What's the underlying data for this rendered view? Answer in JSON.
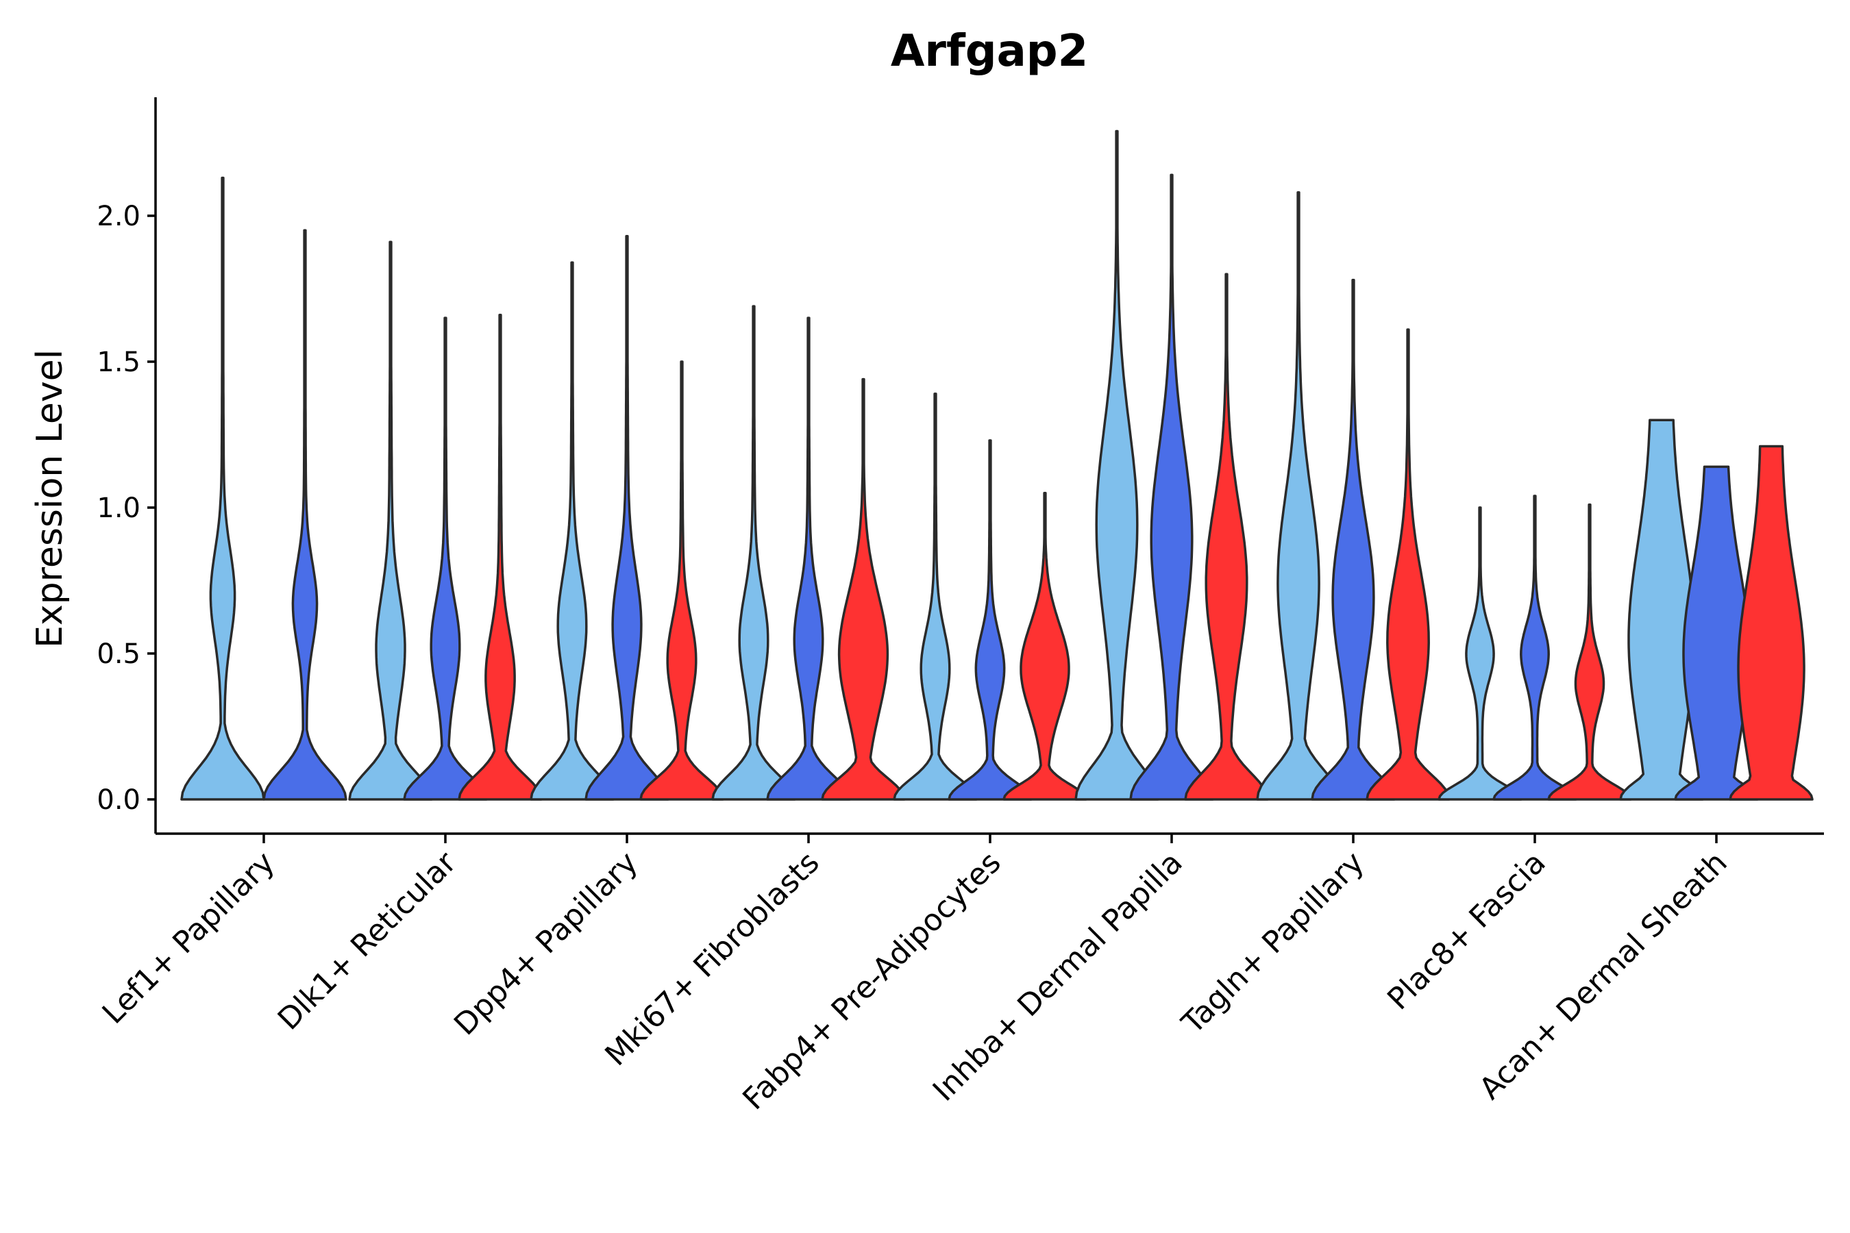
{
  "chart_data": {
    "type": "violin",
    "title": "Arfgap2",
    "xlabel": "",
    "ylabel": "Expression Level",
    "ylim": [
      -0.11,
      2.42
    ],
    "yticks": [
      0.0,
      0.5,
      1.0,
      1.5,
      2.0
    ],
    "ytick_labels": [
      "0.0",
      "0.5",
      "1.0",
      "1.5",
      "2.0"
    ],
    "series_colors": {
      "a": "#7fbfec",
      "b": "#4a6ee8",
      "c": "#fe3232"
    },
    "categories": [
      {
        "name": "Lef1+ Papillary",
        "violins": [
          {
            "series": "a",
            "max": 2.13,
            "peak": 0.7,
            "shape": "mid"
          },
          {
            "series": "b",
            "max": 1.95,
            "peak": 0.67,
            "shape": "mid"
          }
        ]
      },
      {
        "name": "Dlk1+ Reticular",
        "violins": [
          {
            "series": "a",
            "max": 1.91,
            "peak": 0.52,
            "shape": "lowmid"
          },
          {
            "series": "b",
            "max": 1.65,
            "peak": 0.53,
            "shape": "lowmid"
          },
          {
            "series": "c",
            "max": 1.66,
            "peak": 0.42,
            "shape": "lowmid"
          }
        ]
      },
      {
        "name": "Dpp4+ Papillary",
        "violins": [
          {
            "series": "a",
            "max": 1.84,
            "peak": 0.6,
            "shape": "lowmid"
          },
          {
            "series": "b",
            "max": 1.93,
            "peak": 0.6,
            "shape": "lowmid"
          },
          {
            "series": "c",
            "max": 1.5,
            "peak": 0.48,
            "shape": "lowmid"
          }
        ]
      },
      {
        "name": "Mki67+ Fibroblasts",
        "violins": [
          {
            "series": "a",
            "max": 1.69,
            "peak": 0.55,
            "shape": "lowmid"
          },
          {
            "series": "b",
            "max": 1.65,
            "peak": 0.55,
            "shape": "lowmid"
          },
          {
            "series": "c",
            "max": 1.44,
            "peak": 0.5,
            "shape": "wide"
          }
        ]
      },
      {
        "name": "Fabp4+ Pre-Adipocytes",
        "violins": [
          {
            "series": "a",
            "max": 1.39,
            "peak": 0.45,
            "shape": "lowmid"
          },
          {
            "series": "b",
            "max": 1.23,
            "peak": 0.45,
            "shape": "lowmid"
          },
          {
            "series": "c",
            "max": 1.05,
            "peak": 0.45,
            "shape": "wide"
          }
        ]
      },
      {
        "name": "Inhba+ Dermal Papilla",
        "violins": [
          {
            "series": "a",
            "max": 2.29,
            "peak": 0.95,
            "shape": "broad"
          },
          {
            "series": "b",
            "max": 2.14,
            "peak": 0.9,
            "shape": "broad"
          },
          {
            "series": "c",
            "max": 1.8,
            "peak": 0.75,
            "shape": "broad"
          }
        ]
      },
      {
        "name": "Tagln+ Papillary",
        "violins": [
          {
            "series": "a",
            "max": 2.08,
            "peak": 0.75,
            "shape": "broad"
          },
          {
            "series": "b",
            "max": 1.78,
            "peak": 0.7,
            "shape": "broad"
          },
          {
            "series": "c",
            "max": 1.61,
            "peak": 0.55,
            "shape": "broad"
          }
        ]
      },
      {
        "name": "Plac8+ Fascia",
        "violins": [
          {
            "series": "a",
            "max": 1.0,
            "peak": 0.5,
            "shape": "lowmid"
          },
          {
            "series": "b",
            "max": 1.04,
            "peak": 0.5,
            "shape": "lowmid"
          },
          {
            "series": "c",
            "max": 1.01,
            "peak": 0.4,
            "shape": "lowmid"
          }
        ]
      },
      {
        "name": "Acan+ Dermal Sheath",
        "violins": [
          {
            "series": "a",
            "max": 1.3,
            "peak": 0.55,
            "shape": "flat"
          },
          {
            "series": "b",
            "max": 1.14,
            "peak": 0.5,
            "shape": "flat"
          },
          {
            "series": "c",
            "max": 1.21,
            "peak": 0.45,
            "shape": "flat"
          }
        ]
      }
    ]
  }
}
